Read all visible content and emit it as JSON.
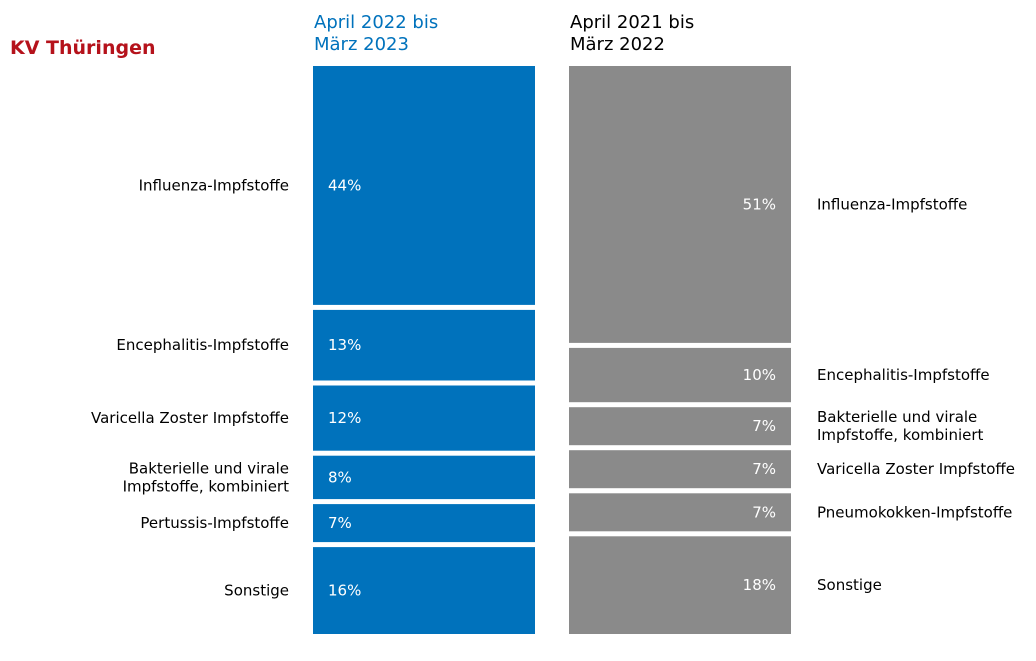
{
  "region": "KV Thüringen",
  "chart_data": [
    {
      "type": "stacked-bar",
      "period_line1": "April 2022 bis",
      "period_line2": "März 2023",
      "color": "#0072bc",
      "segments": [
        {
          "label": "Influenza-Impfstoffe",
          "value": 44,
          "value_label": "44%"
        },
        {
          "label": "Encephalitis-Impfstoffe",
          "value": 13,
          "value_label": "13%"
        },
        {
          "label": "Varicella Zoster Impfstoffe",
          "value": 12,
          "value_label": "12%"
        },
        {
          "label": "Bakterielle und virale Impfstoffe, kombiniert",
          "value": 8,
          "value_label": "8%"
        },
        {
          "label": "Pertussis-Impfstoffe",
          "value": 7,
          "value_label": "7%"
        },
        {
          "label": "Sonstige",
          "value": 16,
          "value_label": "16%"
        }
      ]
    },
    {
      "type": "stacked-bar",
      "period_line1": "April 2021 bis",
      "period_line2": "März 2022",
      "color": "#8a8a8a",
      "segments": [
        {
          "label": "Influenza-Impfstoffe",
          "value": 51,
          "value_label": "51%"
        },
        {
          "label": "Encephalitis-Impfstoffe",
          "value": 10,
          "value_label": "10%"
        },
        {
          "label": "Bakterielle und virale Impfstoffe, kombiniert",
          "value": 7,
          "value_label": "7%"
        },
        {
          "label": "Varicella Zoster Impfstoffe",
          "value": 7,
          "value_label": "7%"
        },
        {
          "label": "Pneumokokken-Impfstoffe",
          "value": 7,
          "value_label": "7%"
        },
        {
          "label": "Sonstige",
          "value": 18,
          "value_label": "18%"
        }
      ]
    }
  ]
}
